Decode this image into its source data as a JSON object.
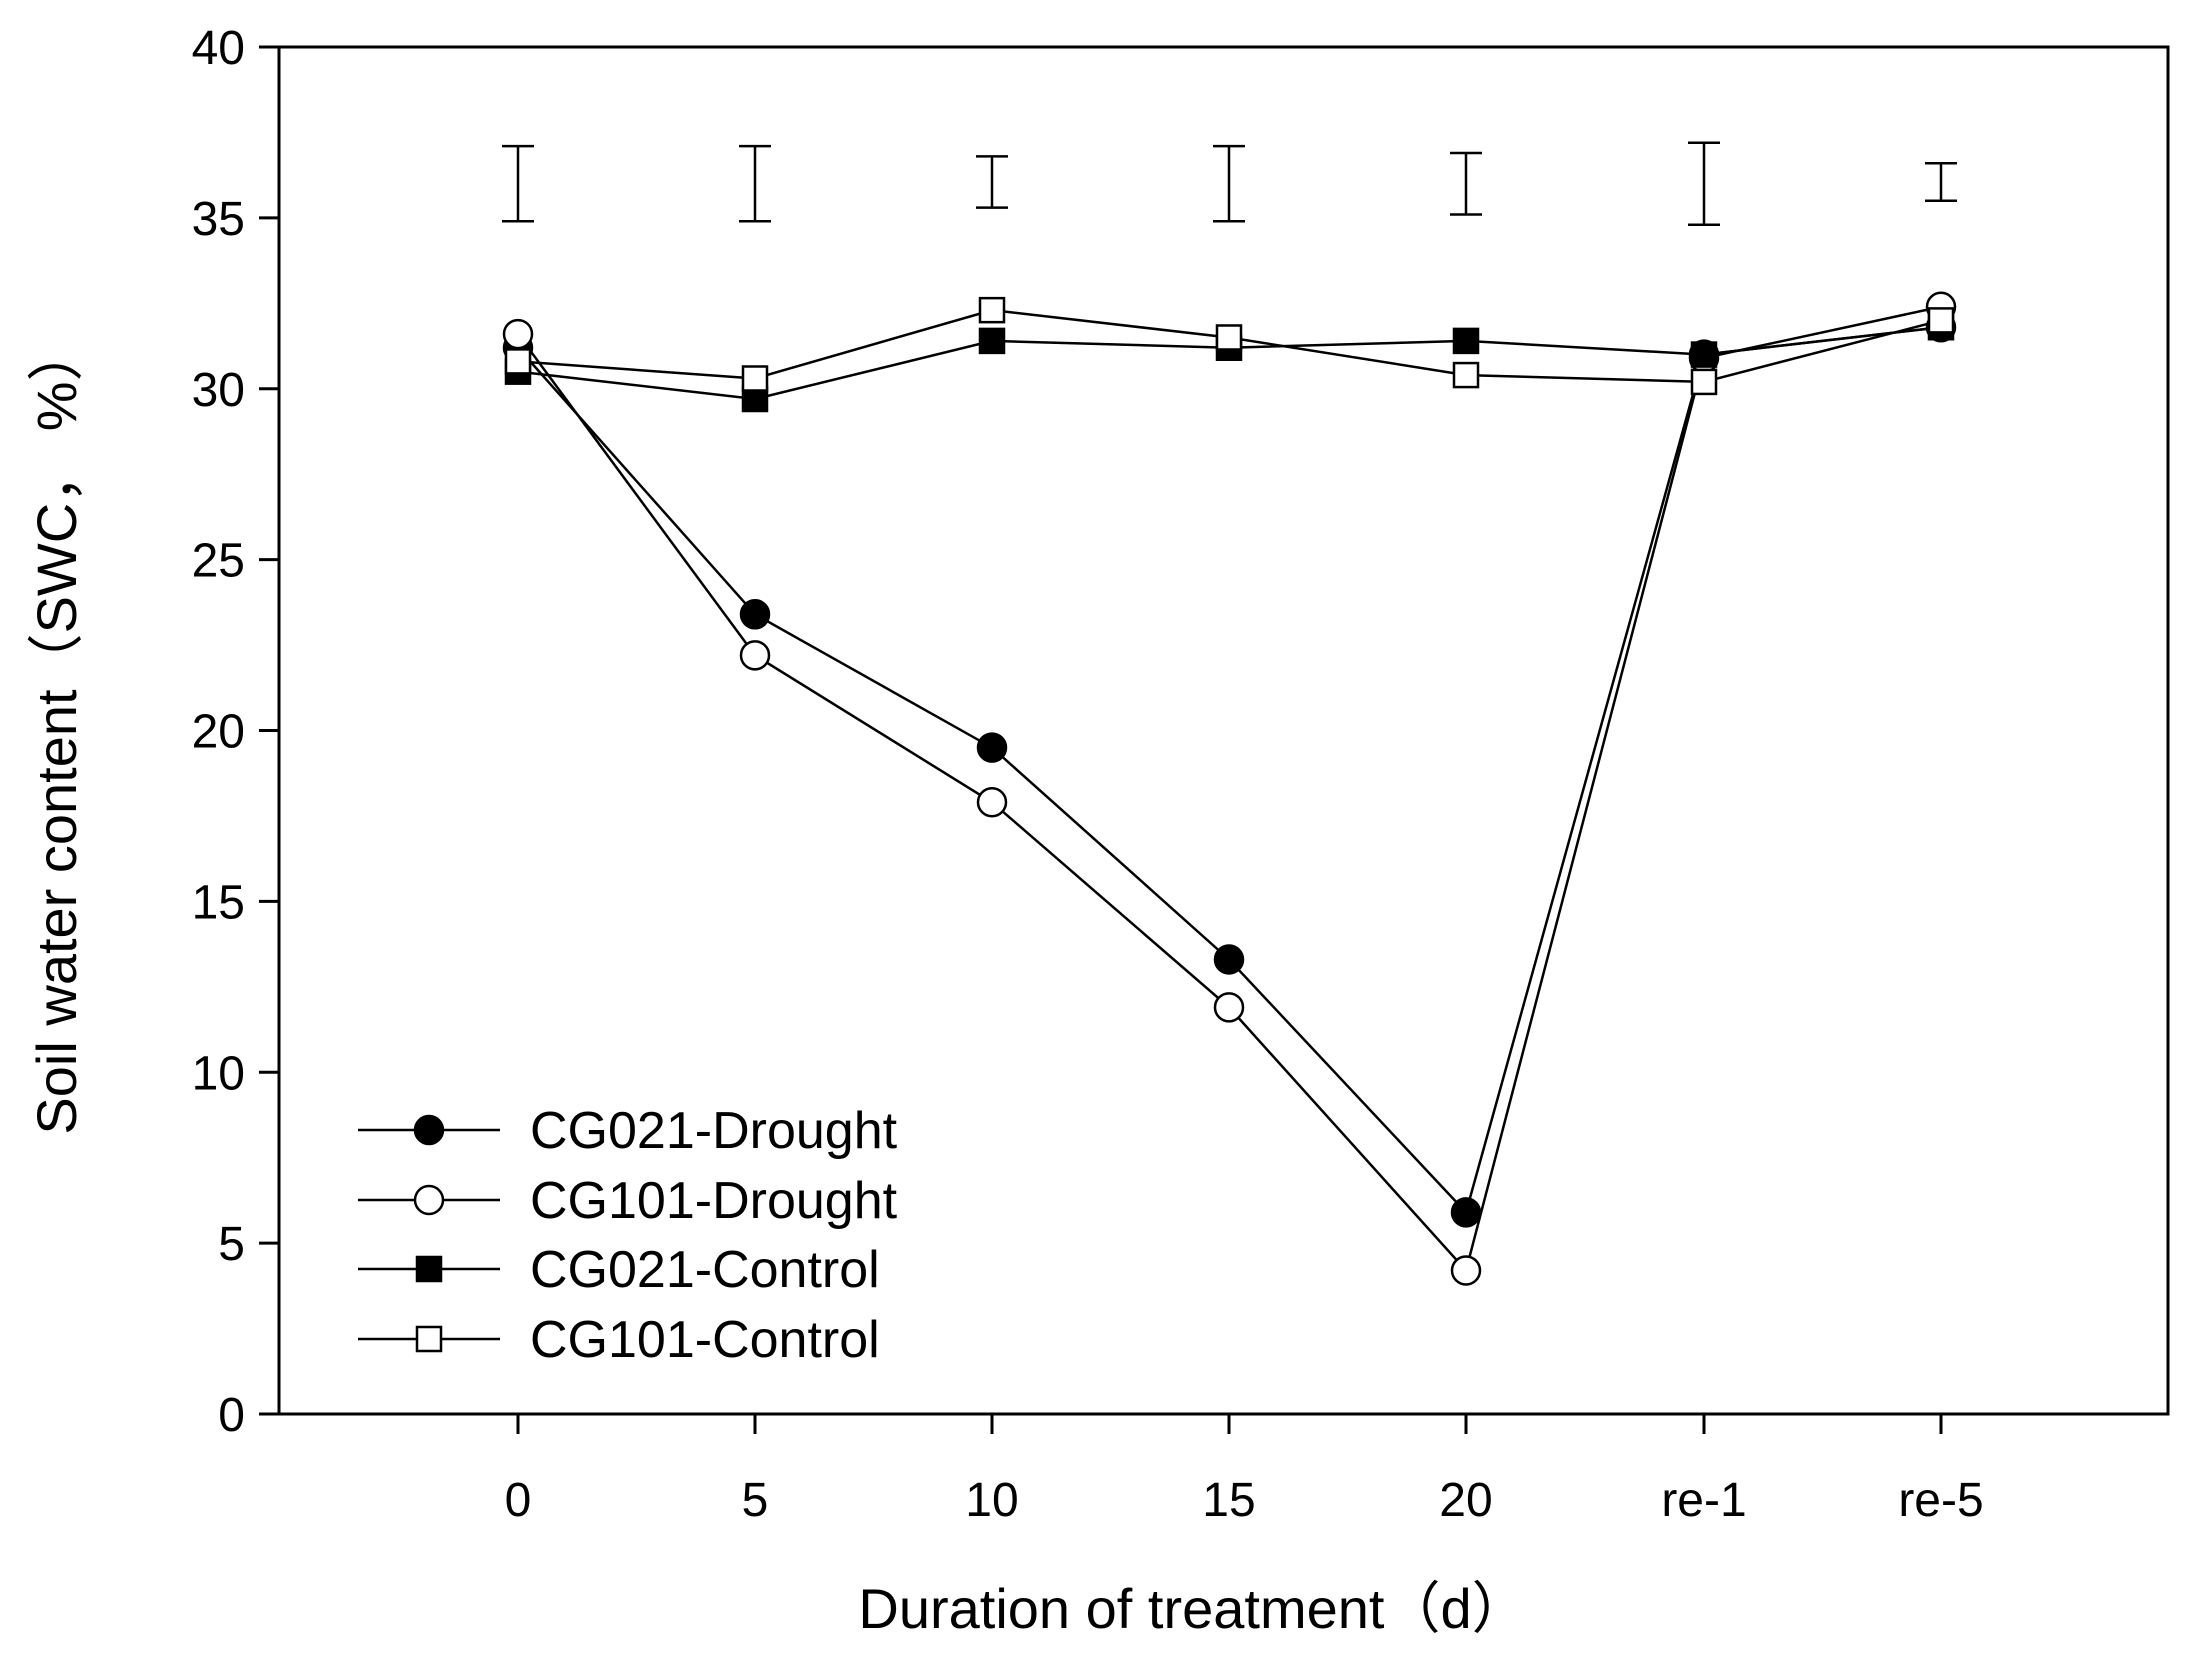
{
  "chart_data": {
    "type": "line",
    "title": "",
    "xlabel": "Duration of treatment（d）",
    "ylabel": "Soil water content（SWC，  %）",
    "categories": [
      "0",
      "5",
      "10",
      "15",
      "20",
      "re-1",
      "re-5"
    ],
    "ylim": [
      0,
      40
    ],
    "yticks": [
      0,
      5,
      10,
      15,
      20,
      25,
      30,
      35,
      40
    ],
    "grid": false,
    "legend_position": "bottom-left",
    "series": [
      {
        "name": "CG021-Drought",
        "marker": "circle",
        "filled": true,
        "values": [
          31.2,
          23.4,
          19.5,
          13.3,
          5.9,
          31.0,
          31.8
        ]
      },
      {
        "name": "CG101-Drought",
        "marker": "circle",
        "filled": false,
        "values": [
          31.6,
          22.2,
          17.9,
          11.9,
          4.2,
          30.9,
          32.4
        ]
      },
      {
        "name": "CG021-Control",
        "marker": "square",
        "filled": true,
        "values": [
          30.5,
          29.7,
          31.4,
          31.2,
          31.4,
          31.0,
          31.8
        ]
      },
      {
        "name": "CG101-Control",
        "marker": "square",
        "filled": false,
        "values": [
          30.8,
          30.3,
          32.3,
          31.5,
          30.4,
          30.2,
          32.0
        ]
      }
    ],
    "lsd_bars": [
      {
        "category": "0",
        "low": 34.9,
        "high": 37.1
      },
      {
        "category": "5",
        "low": 34.9,
        "high": 37.1
      },
      {
        "category": "10",
        "low": 35.3,
        "high": 36.8
      },
      {
        "category": "15",
        "low": 34.9,
        "high": 37.1
      },
      {
        "category": "20",
        "low": 35.1,
        "high": 36.9
      },
      {
        "category": "re-1",
        "low": 34.8,
        "high": 37.2
      },
      {
        "category": "re-5",
        "low": 35.5,
        "high": 36.6
      }
    ],
    "colors": {
      "line": "#000000",
      "filled_marker": "#000000",
      "open_marker_fill": "#ffffff",
      "background": "#ffffff"
    }
  }
}
